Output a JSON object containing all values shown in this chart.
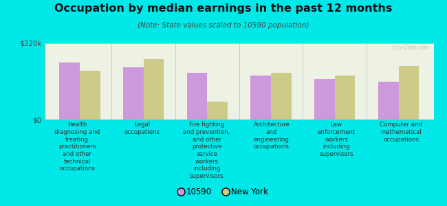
{
  "title": "Occupation by median earnings in the past 12 months",
  "subtitle": "(Note: State values scaled to 10590 population)",
  "background_color": "#00e8e8",
  "plot_bg_color": "#eef2e4",
  "categories": [
    "Health\ndiagnosing and\ntreating\npractitioners\nand other\ntechnical\noccupations",
    "Legal\noccupations",
    "Fire fighting\nand prevention,\nand other\nprotective\nservice\nworkers\nincluding\nsupervisors",
    "Architecture\nand\nengineering\noccupations",
    "Law\nenforcement\nworkers\nincluding\nsupervisors",
    "Computer and\nmathematical\noccupations"
  ],
  "values_10590": [
    240000,
    220000,
    195000,
    185000,
    170000,
    158000
  ],
  "values_ny": [
    205000,
    255000,
    75000,
    195000,
    185000,
    225000
  ],
  "color_10590": "#cc99dd",
  "color_ny": "#cccc88",
  "ymax": 320000,
  "ytick_labels": [
    "$0",
    "$320k"
  ],
  "ytick_vals": [
    0,
    320000
  ],
  "legend_label_10590": "10590",
  "legend_label_ny": "New York",
  "watermark": "City-Data.com"
}
